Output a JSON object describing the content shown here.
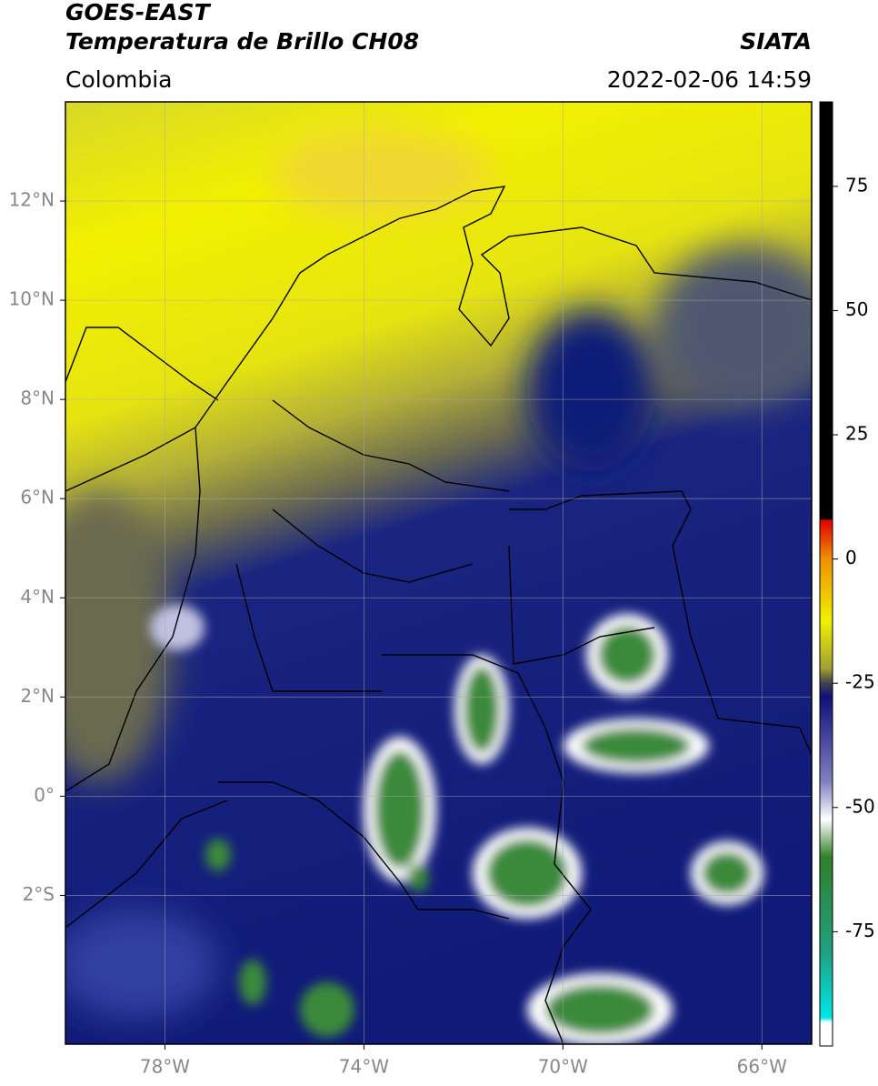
{
  "header": {
    "title": "GOES-EAST",
    "subtitle": "Temperatura de Brillo CH08",
    "region": "Colombia",
    "source": "SIATA",
    "datetime": "2022-02-06 14:59"
  },
  "map": {
    "lon_range": [
      -80,
      -65
    ],
    "lat_range": [
      -5,
      14
    ],
    "lat_ticks": [
      {
        "value": 12,
        "label": "12°N"
      },
      {
        "value": 10,
        "label": "10°N"
      },
      {
        "value": 8,
        "label": "8°N"
      },
      {
        "value": 6,
        "label": "6°N"
      },
      {
        "value": 4,
        "label": "4°N"
      },
      {
        "value": 2,
        "label": "2°N"
      },
      {
        "value": 0,
        "label": "0°"
      },
      {
        "value": -2,
        "label": "2°S"
      }
    ],
    "lon_ticks": [
      {
        "value": -78,
        "label": "78°W"
      },
      {
        "value": -74,
        "label": "74°W"
      },
      {
        "value": -70,
        "label": "70°W"
      },
      {
        "value": -66,
        "label": "66°W"
      }
    ],
    "grid": true
  },
  "colorbar": {
    "range": [
      -98,
      92
    ],
    "ticks": [
      75,
      50,
      25,
      0,
      -25,
      -50,
      -75
    ]
  }
}
